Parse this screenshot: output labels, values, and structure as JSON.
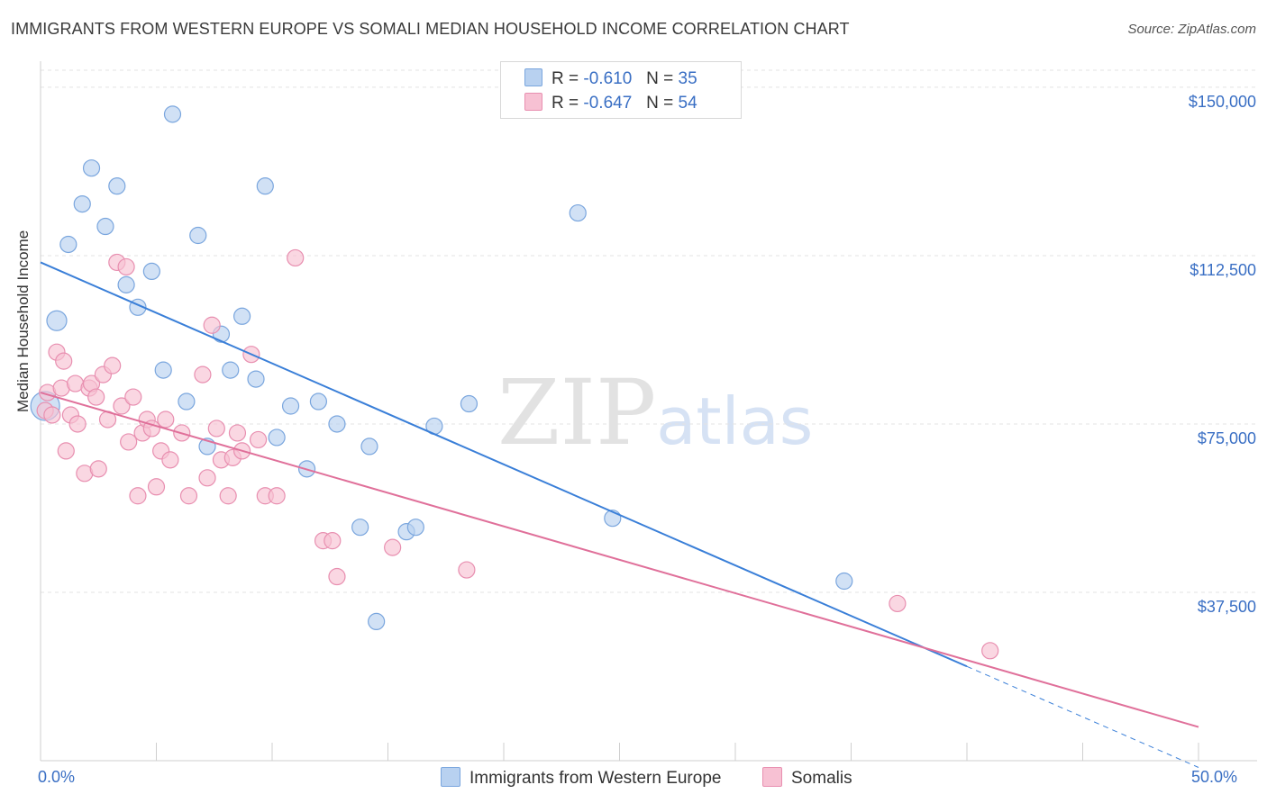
{
  "title": "IMMIGRANTS FROM WESTERN EUROPE VS SOMALI MEDIAN HOUSEHOLD INCOME CORRELATION CHART",
  "source": "Source: ZipAtlas.com",
  "watermark": {
    "zip": "ZIP",
    "atlas": "atlas"
  },
  "legend": {
    "blue": {
      "r_label": "R =",
      "r_value": "-0.610",
      "n_label": "N =",
      "n_value": "35"
    },
    "pink": {
      "r_label": "R =",
      "r_value": "-0.647",
      "n_label": "N =",
      "n_value": "54"
    }
  },
  "colors": {
    "blue": "#3a7fd8",
    "blue_fill": "#b8d1f0",
    "pink": "#e0709a",
    "pink_fill": "#f7c1d3",
    "axis_text": "#3a6fc4"
  },
  "chart_data": {
    "type": "scatter",
    "ylabel": "Median Household Income",
    "xlim": [
      0,
      50
    ],
    "ylim": [
      0,
      155000
    ],
    "x_tick_labels": [
      "0.0%",
      "50.0%"
    ],
    "y_ticks": [
      {
        "value": 37500,
        "label": "$37,500"
      },
      {
        "value": 75000,
        "label": "$75,000"
      },
      {
        "value": 112500,
        "label": "$112,500"
      },
      {
        "value": 150000,
        "label": "$150,000"
      }
    ],
    "series": [
      {
        "name": "Immigrants from Western Europe",
        "color": "#3a7fd8",
        "points": [
          [
            0.2,
            79000,
            16
          ],
          [
            0.7,
            98000,
            11
          ],
          [
            1.2,
            115000,
            9
          ],
          [
            1.8,
            124000,
            9
          ],
          [
            2.2,
            132000,
            9
          ],
          [
            2.8,
            119000,
            9
          ],
          [
            3.3,
            128000,
            9
          ],
          [
            3.7,
            106000,
            9
          ],
          [
            4.2,
            101000,
            9
          ],
          [
            4.8,
            109000,
            9
          ],
          [
            5.3,
            87000,
            9
          ],
          [
            5.7,
            144000,
            9
          ],
          [
            6.3,
            80000,
            9
          ],
          [
            6.8,
            117000,
            9
          ],
          [
            7.2,
            70000,
            9
          ],
          [
            7.8,
            95000,
            9
          ],
          [
            8.2,
            87000,
            9
          ],
          [
            8.7,
            99000,
            9
          ],
          [
            9.3,
            85000,
            9
          ],
          [
            9.7,
            128000,
            9
          ],
          [
            10.2,
            72000,
            9
          ],
          [
            10.8,
            79000,
            9
          ],
          [
            11.5,
            65000,
            9
          ],
          [
            12.0,
            80000,
            9
          ],
          [
            12.8,
            75000,
            9
          ],
          [
            13.8,
            52000,
            9
          ],
          [
            14.2,
            70000,
            9
          ],
          [
            14.5,
            31000,
            9
          ],
          [
            15.8,
            51000,
            9
          ],
          [
            16.2,
            52000,
            9
          ],
          [
            17.0,
            74500,
            9
          ],
          [
            18.5,
            79500,
            9
          ],
          [
            23.2,
            122000,
            9
          ],
          [
            24.7,
            54000,
            9
          ],
          [
            34.7,
            40000,
            9
          ]
        ],
        "trend": {
          "x0": 0,
          "y0": 111000,
          "x1": 40,
          "y1": 21000,
          "dash_x_end": 50
        }
      },
      {
        "name": "Somalis",
        "color": "#e0709a",
        "points": [
          [
            0.2,
            78000,
            9
          ],
          [
            0.3,
            82000,
            9
          ],
          [
            0.5,
            77000,
            9
          ],
          [
            0.7,
            91000,
            9
          ],
          [
            0.9,
            83000,
            9
          ],
          [
            1.0,
            89000,
            9
          ],
          [
            1.1,
            69000,
            9
          ],
          [
            1.3,
            77000,
            9
          ],
          [
            1.5,
            84000,
            9
          ],
          [
            1.6,
            75000,
            9
          ],
          [
            1.9,
            64000,
            9
          ],
          [
            2.1,
            83000,
            9
          ],
          [
            2.2,
            84000,
            9
          ],
          [
            2.4,
            81000,
            9
          ],
          [
            2.5,
            65000,
            9
          ],
          [
            2.7,
            86000,
            9
          ],
          [
            2.9,
            76000,
            9
          ],
          [
            3.1,
            88000,
            9
          ],
          [
            3.3,
            111000,
            9
          ],
          [
            3.5,
            79000,
            9
          ],
          [
            3.7,
            110000,
            9
          ],
          [
            3.8,
            71000,
            9
          ],
          [
            4.0,
            81000,
            9
          ],
          [
            4.2,
            59000,
            9
          ],
          [
            4.4,
            73000,
            9
          ],
          [
            4.6,
            76000,
            9
          ],
          [
            4.8,
            74000,
            9
          ],
          [
            5.0,
            61000,
            9
          ],
          [
            5.2,
            69000,
            9
          ],
          [
            5.4,
            76000,
            9
          ],
          [
            5.6,
            67000,
            9
          ],
          [
            6.1,
            73000,
            9
          ],
          [
            6.4,
            59000,
            9
          ],
          [
            7.0,
            86000,
            9
          ],
          [
            7.2,
            63000,
            9
          ],
          [
            7.4,
            97000,
            9
          ],
          [
            7.6,
            74000,
            9
          ],
          [
            7.8,
            67000,
            9
          ],
          [
            8.1,
            59000,
            9
          ],
          [
            8.3,
            67500,
            9
          ],
          [
            8.5,
            73000,
            9
          ],
          [
            8.7,
            69000,
            9
          ],
          [
            9.1,
            90500,
            9
          ],
          [
            9.4,
            71500,
            9
          ],
          [
            9.7,
            59000,
            9
          ],
          [
            10.2,
            59000,
            9
          ],
          [
            11.0,
            112000,
            9
          ],
          [
            12.2,
            49000,
            9
          ],
          [
            12.6,
            49000,
            9
          ],
          [
            12.8,
            41000,
            9
          ],
          [
            15.2,
            47500,
            9
          ],
          [
            18.4,
            42500,
            9
          ],
          [
            37.0,
            35000,
            9
          ],
          [
            41.0,
            24500,
            9
          ]
        ],
        "trend": {
          "x0": 0,
          "y0": 82000,
          "x1": 50,
          "y1": 7500
        }
      }
    ]
  }
}
